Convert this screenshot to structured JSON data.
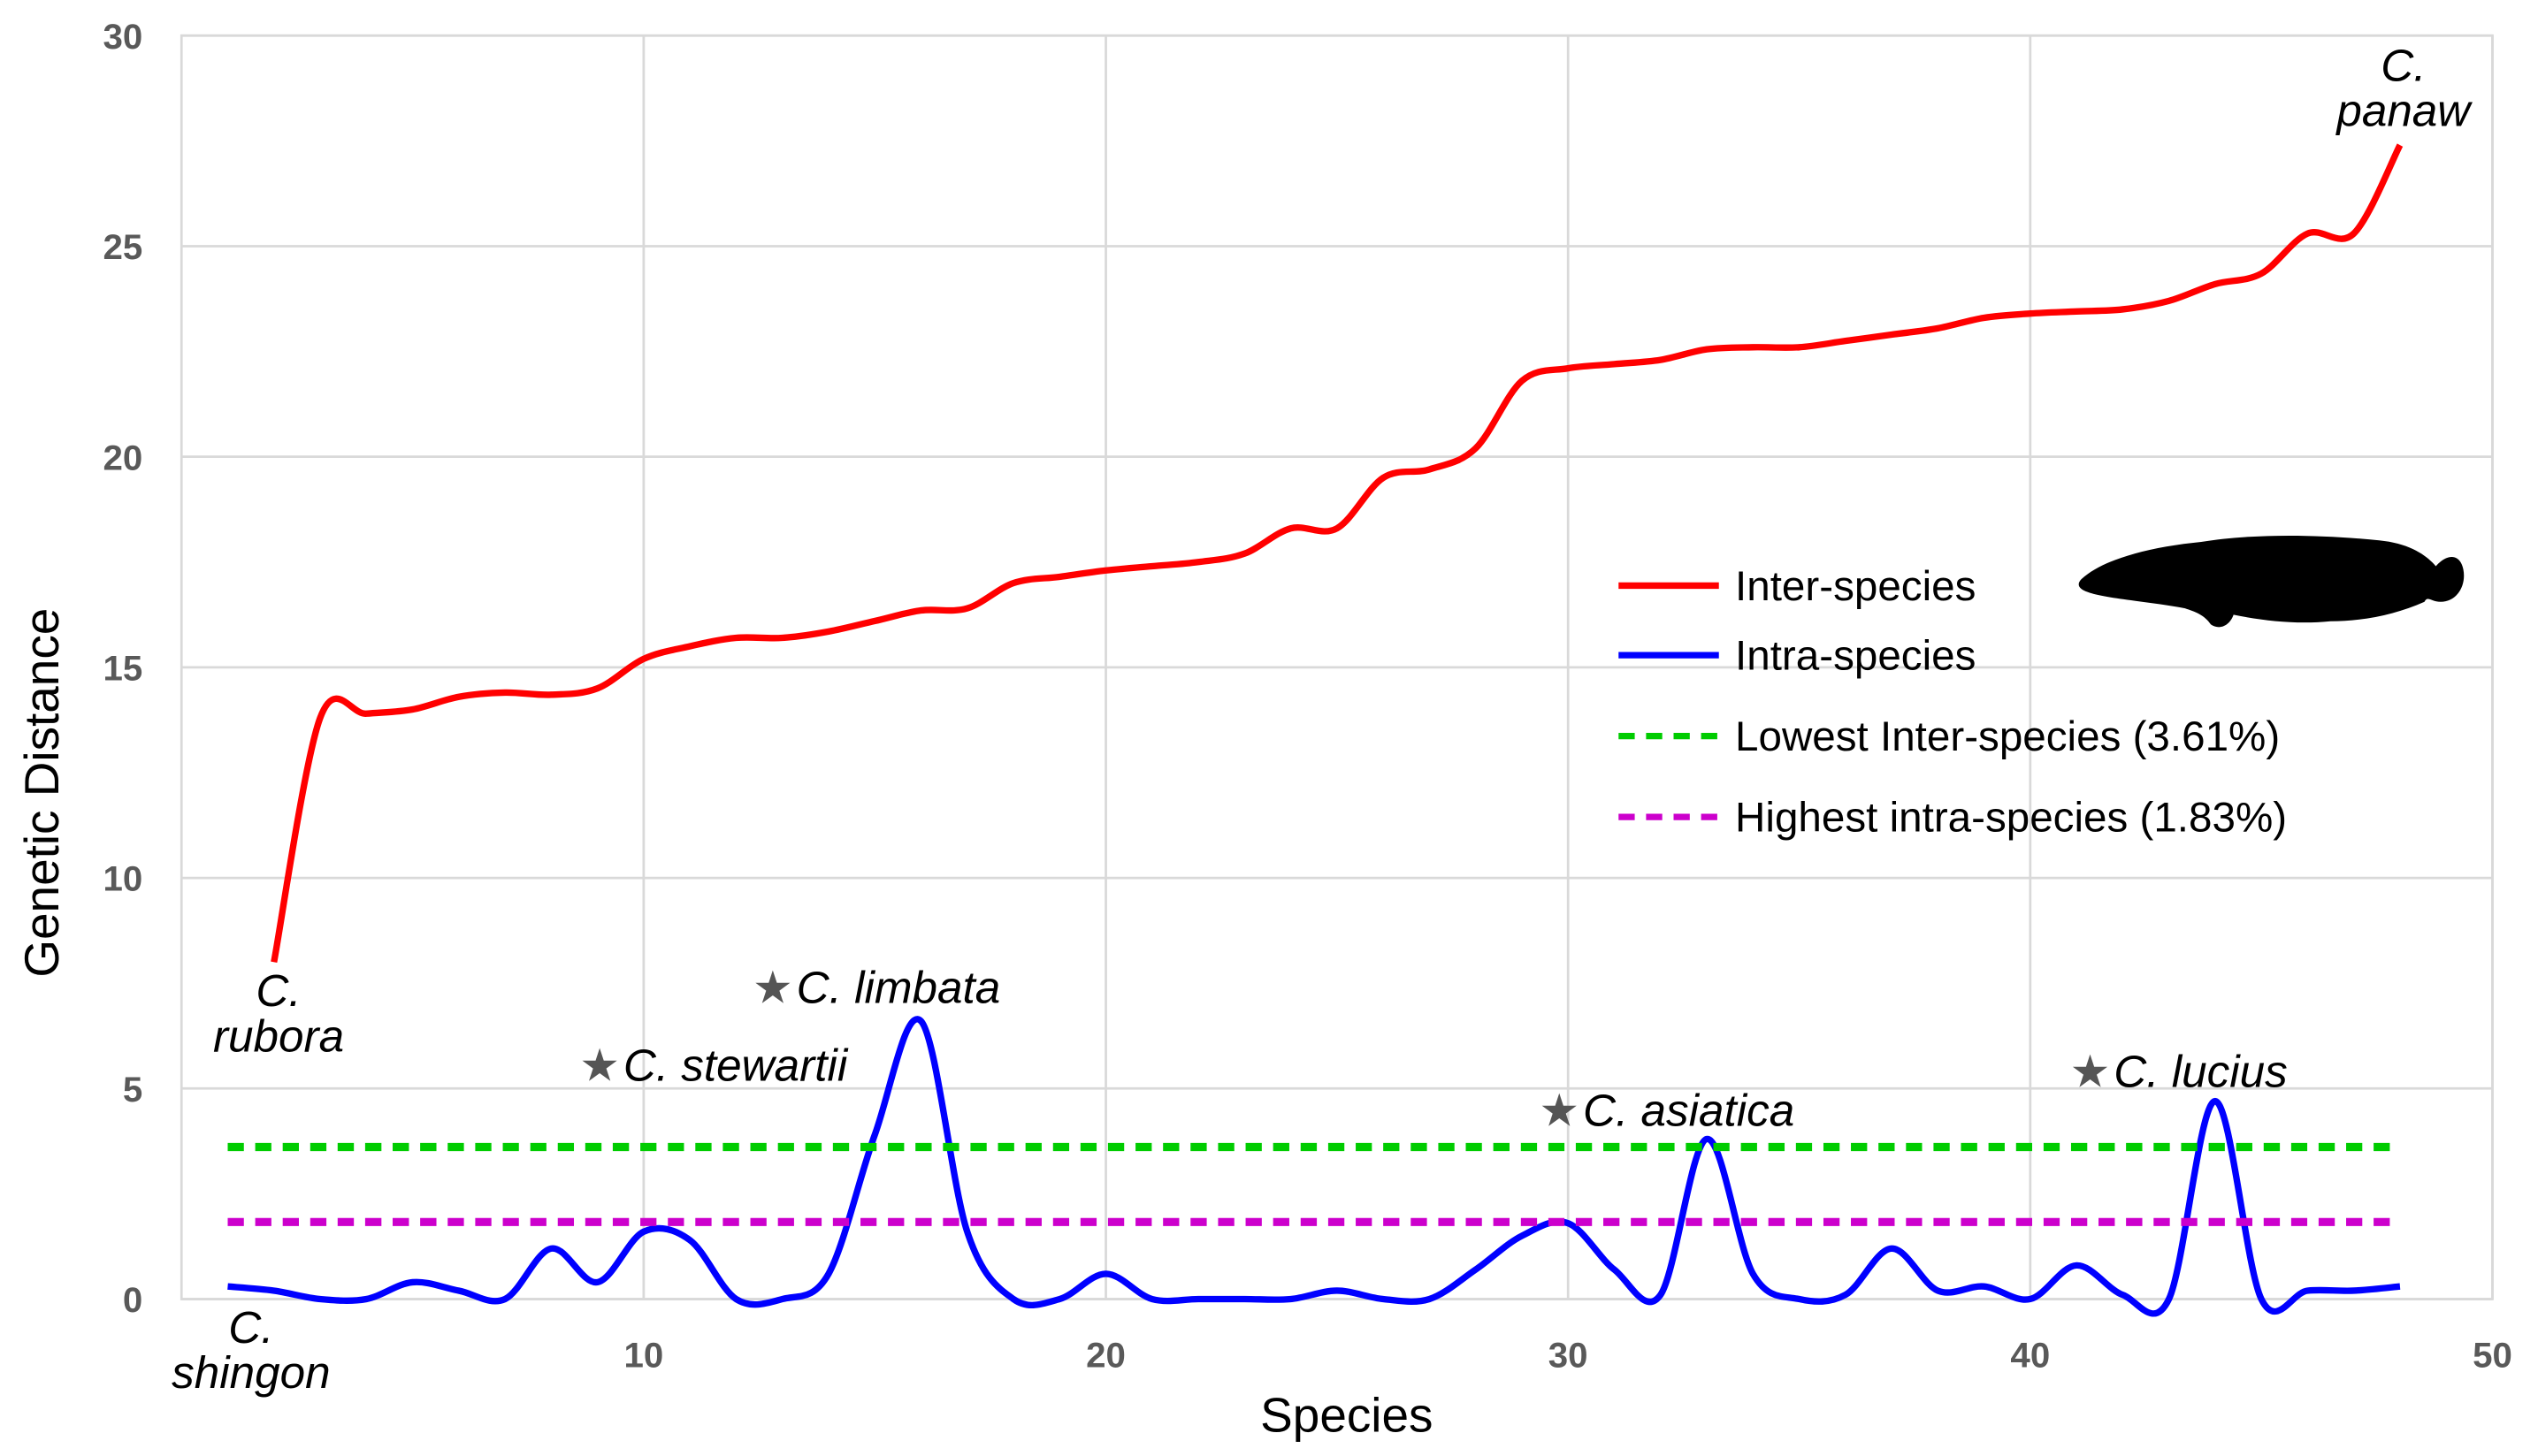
{
  "chart_data": {
    "type": "line",
    "title": "",
    "xlabel": "Species",
    "ylabel": "Genetic Distance",
    "xlim": [
      0,
      50
    ],
    "ylim": [
      0,
      30
    ],
    "xticks": [
      10,
      20,
      30,
      40,
      50
    ],
    "yticks": [
      0,
      5,
      10,
      15,
      20,
      25,
      30
    ],
    "grid": true,
    "legend_placement": "center-right",
    "series": [
      {
        "name": "Inter-species",
        "color": "#ff0000",
        "style": "solid",
        "x": [
          2,
          3,
          4,
          5,
          6,
          7,
          8,
          9,
          10,
          11,
          12,
          13,
          14,
          15,
          16,
          17,
          18,
          19,
          20,
          21,
          22,
          23,
          24,
          25,
          26,
          27,
          28,
          29,
          30,
          31,
          32,
          33,
          34,
          35,
          36,
          37,
          38,
          39,
          40,
          41,
          42,
          43,
          44,
          45,
          46,
          47,
          48
        ],
        "values": [
          8.0,
          13.8,
          13.9,
          14.0,
          14.3,
          14.4,
          14.35,
          14.5,
          15.2,
          15.5,
          15.7,
          15.7,
          15.85,
          16.1,
          16.35,
          16.4,
          17.0,
          17.15,
          17.3,
          17.4,
          17.5,
          17.7,
          18.3,
          18.3,
          19.5,
          19.7,
          20.2,
          21.8,
          22.1,
          22.2,
          22.3,
          22.55,
          22.6,
          22.6,
          22.75,
          22.9,
          23.05,
          23.3,
          23.4,
          23.45,
          23.5,
          23.7,
          24.1,
          24.35,
          25.3,
          25.3,
          27.4
        ]
      },
      {
        "name": "Intra-species",
        "color": "#0000ff",
        "style": "solid",
        "x": [
          1,
          2,
          3,
          4,
          5,
          6,
          7,
          8,
          9,
          10,
          11,
          12,
          13,
          14,
          15,
          16,
          17,
          18,
          19,
          20,
          21,
          22,
          23,
          24,
          25,
          26,
          27,
          28,
          29,
          30,
          31,
          32,
          33,
          34,
          35,
          36,
          37,
          38,
          39,
          40,
          41,
          42,
          43,
          44,
          45,
          46,
          47,
          48
        ],
        "values": [
          0.3,
          0.2,
          0.0,
          0.0,
          0.4,
          0.2,
          0.0,
          1.2,
          0.4,
          1.6,
          1.4,
          0.0,
          0.0,
          0.6,
          3.9,
          6.6,
          1.6,
          0.0,
          0.0,
          0.6,
          0.0,
          0.0,
          0.0,
          0.0,
          0.2,
          0.0,
          0.0,
          0.7,
          1.5,
          1.8,
          0.7,
          0.1,
          3.8,
          0.6,
          0.0,
          0.1,
          1.2,
          0.2,
          0.3,
          0.0,
          0.8,
          0.1,
          0.0,
          4.7,
          0.0,
          0.2,
          0.2,
          0.3
        ]
      },
      {
        "name": "Lowest Inter-species (3.61%)",
        "color": "#00cc00",
        "style": "dashed",
        "x": [
          1,
          48
        ],
        "values": [
          3.61,
          3.61
        ]
      },
      {
        "name": "Highest intra-species (1.83%)",
        "color": "#cc00cc",
        "style": "dashed",
        "x": [
          1,
          48
        ],
        "values": [
          1.83,
          1.83
        ]
      }
    ],
    "annotations": [
      {
        "text_lines": [
          "C.",
          "rubora"
        ],
        "x": 2,
        "y": 7,
        "star": false
      },
      {
        "text_lines": [
          "C.",
          "shingon"
        ],
        "x": 1,
        "y": -1,
        "star": false
      },
      {
        "text_lines": [
          "C.",
          "panaw"
        ],
        "x": 47.5,
        "y": 29,
        "star": false
      },
      {
        "text_lines": [
          "C. limbata"
        ],
        "x": 15.5,
        "y": 7.3,
        "star": true
      },
      {
        "text_lines": [
          "C. stewartii"
        ],
        "x": 12,
        "y": 5.5,
        "star": true
      },
      {
        "text_lines": [
          "C. asiatica"
        ],
        "x": 32,
        "y": 4.5,
        "star": true
      },
      {
        "text_lines": [
          "C. lucius"
        ],
        "x": 43,
        "y": 5.5,
        "star": true
      }
    ]
  }
}
